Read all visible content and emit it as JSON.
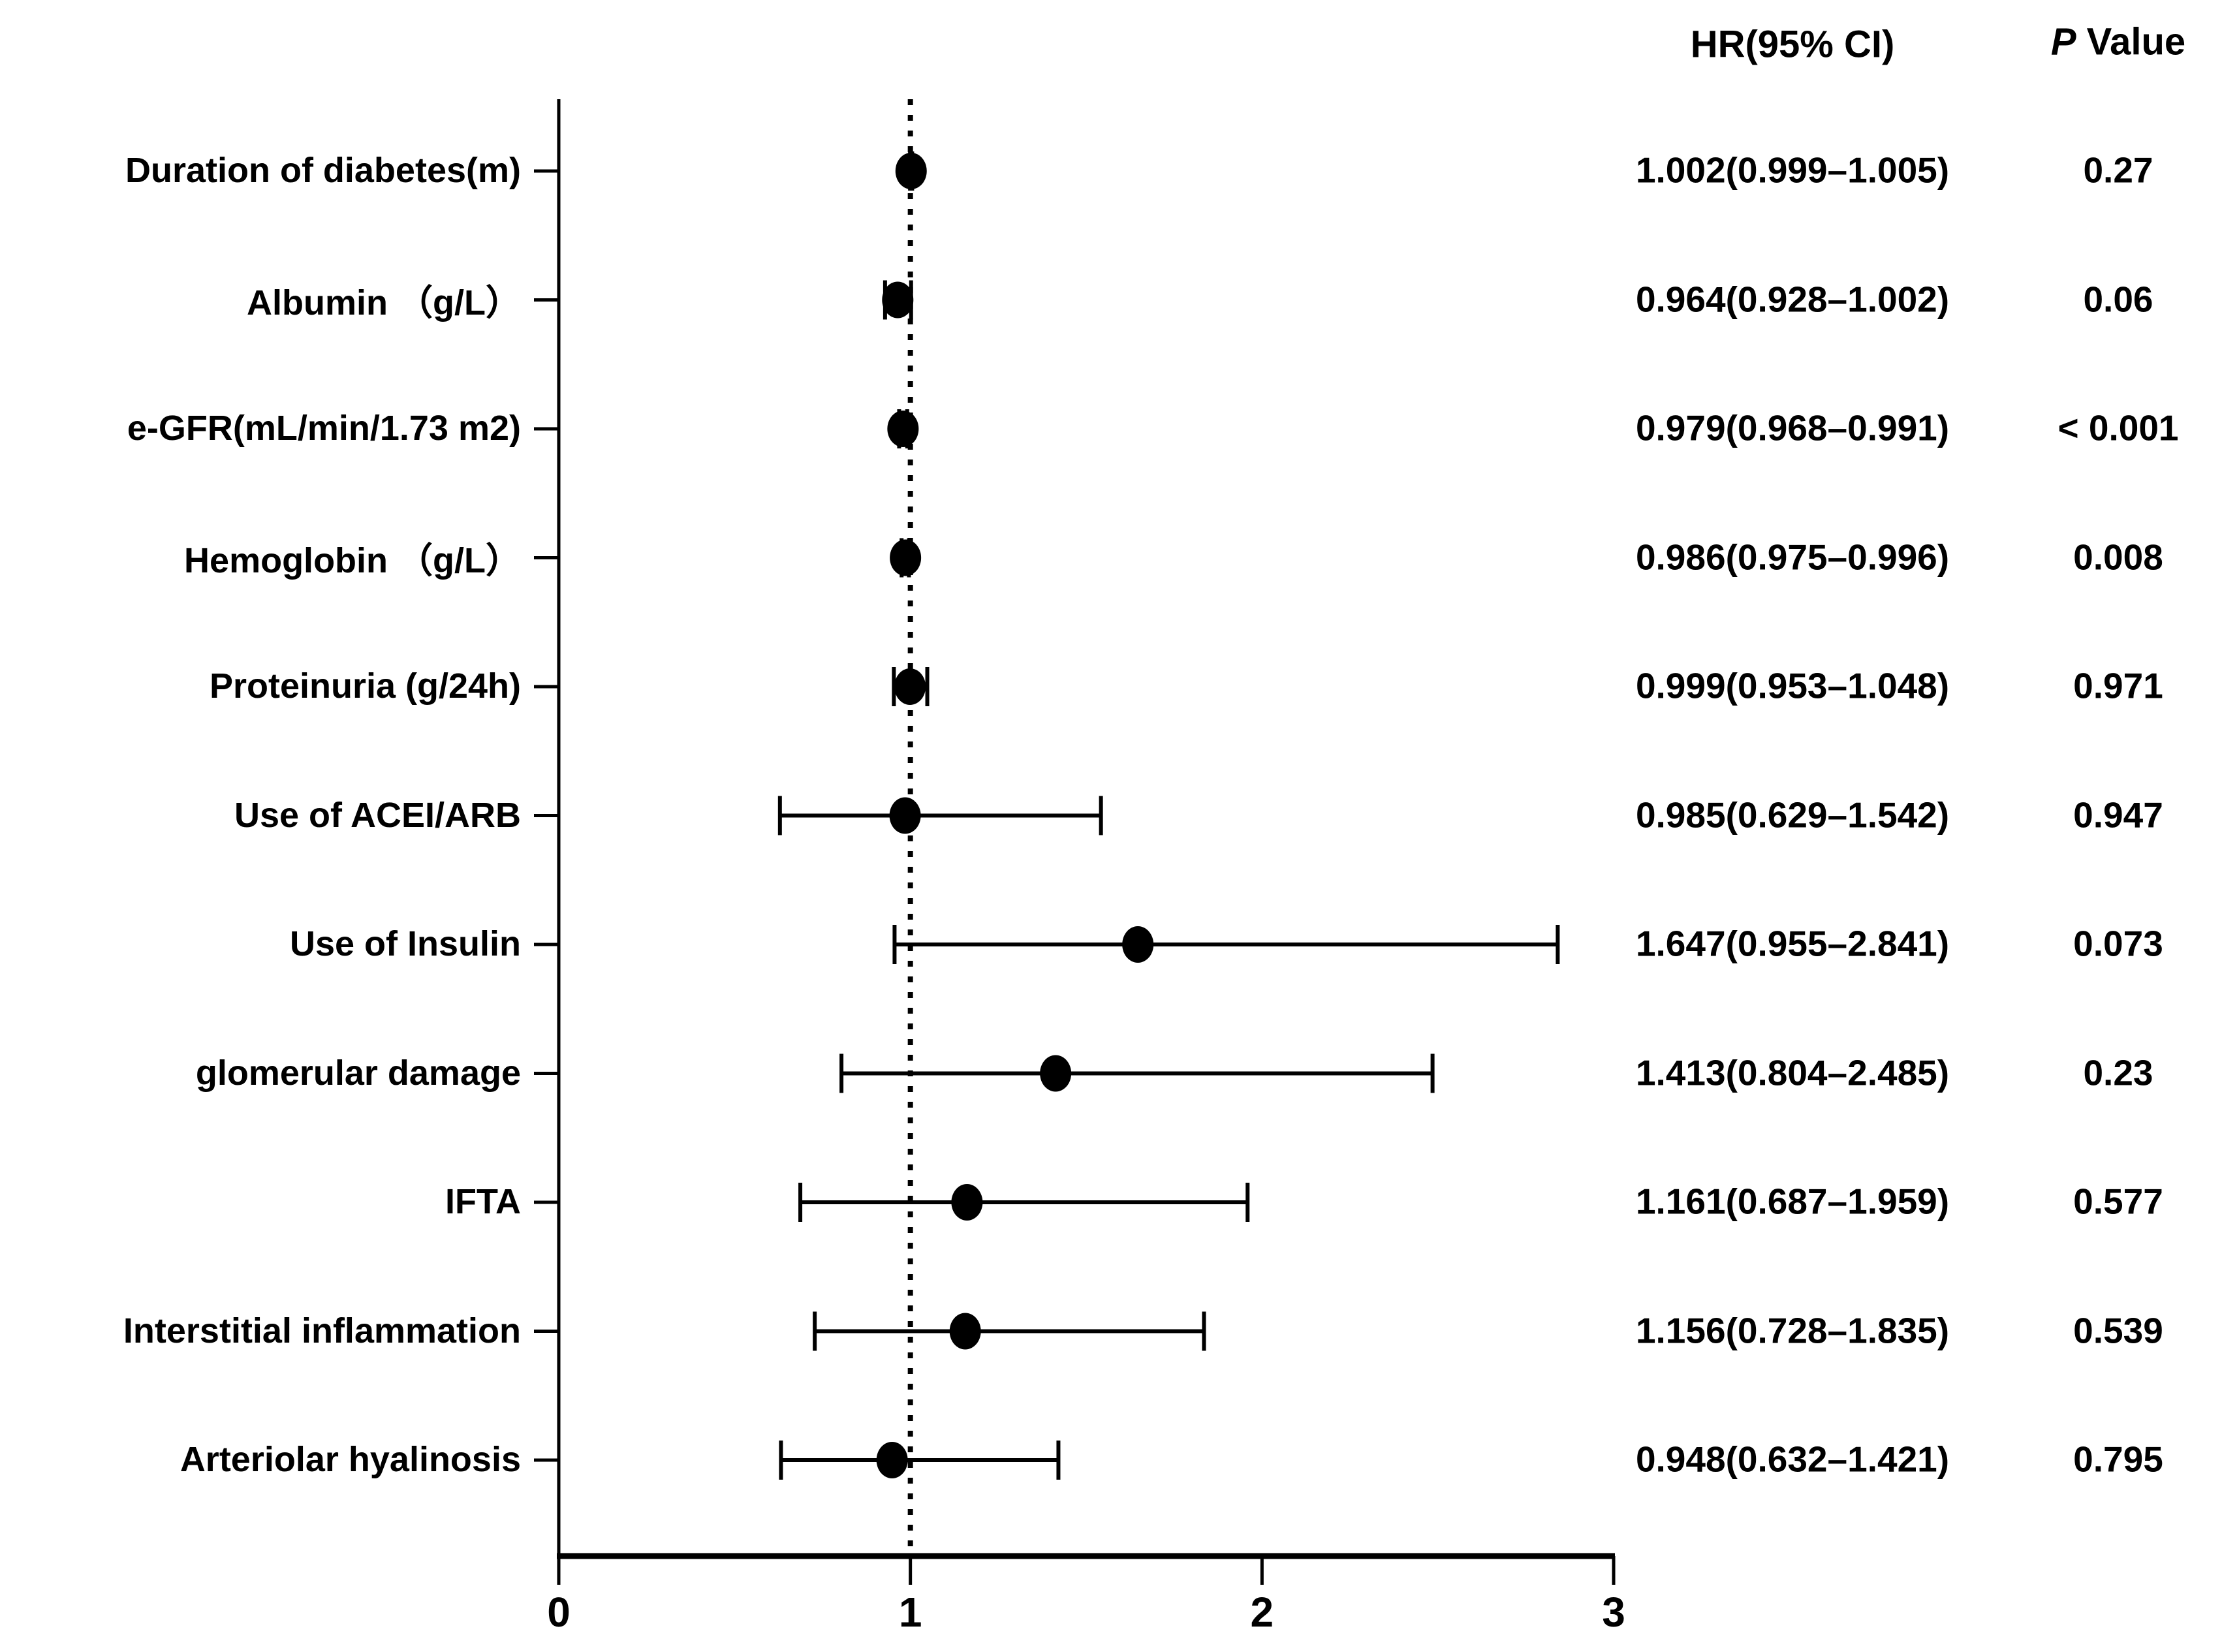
{
  "page": {
    "background": "#ffffff",
    "text_color": "#000000"
  },
  "header": {
    "hr_label": "HR(95% CI)",
    "p_italic": "P",
    "p_rest": " Value"
  },
  "chart_data": {
    "type": "forest",
    "title": "",
    "xlabel": "",
    "ylabel": "",
    "x_axis": {
      "range": [
        0,
        3
      ],
      "tick_values": [
        0,
        1,
        2,
        3
      ],
      "tick_labels": [
        "0",
        "1",
        "2",
        "3"
      ],
      "reference_line": 1.0,
      "grid": false
    },
    "columns": {
      "hr_header": "HR(95% CI)",
      "p_header": "P Value"
    },
    "rows": [
      {
        "label": "Duration of diabetes(m)",
        "hr": 1.002,
        "ci_low": 0.999,
        "ci_high": 1.005,
        "hr_ci_text": "1.002(0.999–1.005)",
        "p_text": "0.27"
      },
      {
        "label": "Albumin （g/L）",
        "hr": 0.964,
        "ci_low": 0.928,
        "ci_high": 1.002,
        "hr_ci_text": "0.964(0.928–1.002)",
        "p_text": "0.06"
      },
      {
        "label": "e-GFR(mL/min/1.73 m2)",
        "hr": 0.979,
        "ci_low": 0.968,
        "ci_high": 0.991,
        "hr_ci_text": "0.979(0.968–0.991)",
        "p_text": "< 0.001"
      },
      {
        "label": "Hemoglobin （g/L）",
        "hr": 0.986,
        "ci_low": 0.975,
        "ci_high": 0.996,
        "hr_ci_text": "0.986(0.975–0.996)",
        "p_text": "0.008"
      },
      {
        "label": "Proteinuria (g/24h)",
        "hr": 0.999,
        "ci_low": 0.953,
        "ci_high": 1.048,
        "hr_ci_text": "0.999(0.953–1.048)",
        "p_text": "0.971"
      },
      {
        "label": "Use of ACEI/ARB",
        "hr": 0.985,
        "ci_low": 0.629,
        "ci_high": 1.542,
        "hr_ci_text": "0.985(0.629–1.542)",
        "p_text": "0.947"
      },
      {
        "label": "Use of Insulin",
        "hr": 1.647,
        "ci_low": 0.955,
        "ci_high": 2.841,
        "hr_ci_text": "1.647(0.955–2.841)",
        "p_text": "0.073"
      },
      {
        "label": "glomerular damage",
        "hr": 1.413,
        "ci_low": 0.804,
        "ci_high": 2.485,
        "hr_ci_text": "1.413(0.804–2.485)",
        "p_text": "0.23"
      },
      {
        "label": "IFTA",
        "hr": 1.161,
        "ci_low": 0.687,
        "ci_high": 1.959,
        "hr_ci_text": "1.161(0.687–1.959)",
        "p_text": "0.577"
      },
      {
        "label": "Interstitial inflammation",
        "hr": 1.156,
        "ci_low": 0.728,
        "ci_high": 1.835,
        "hr_ci_text": "1.156(0.728–1.835)",
        "p_text": "0.539"
      },
      {
        "label": "Arteriolar hyalinosis",
        "hr": 0.948,
        "ci_low": 0.632,
        "ci_high": 1.421,
        "hr_ci_text": "0.948(0.632–1.421)",
        "p_text": "0.795"
      }
    ]
  }
}
